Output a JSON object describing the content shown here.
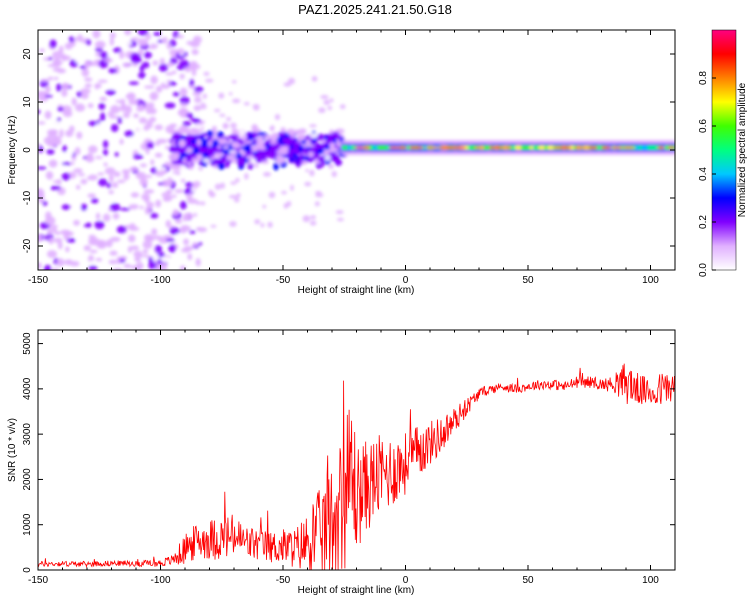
{
  "title": "PAZ1.2025.241.21.50.G18",
  "chart_data": [
    {
      "type": "heatmap",
      "name": "spectrogram",
      "xlabel": "Height of straight line (km)",
      "ylabel": "Frequency (Hz)",
      "xlim": [
        -150,
        110
      ],
      "ylim": [
        -25,
        25
      ],
      "xticks": [
        -150,
        -100,
        -50,
        0,
        50,
        100
      ],
      "yticks": [
        -20,
        -10,
        0,
        10,
        20
      ],
      "colorbar": {
        "label": "Normalized spectral amplitude",
        "range": [
          0,
          1
        ],
        "ticks": [
          0.0,
          0.2,
          0.4,
          0.6,
          0.8
        ],
        "tick_labels": [
          "0.0",
          "0.2",
          "0.4",
          "0.6",
          "0.8"
        ],
        "colormap": [
          "#ffffff",
          "#e0b0ff",
          "#8000ff",
          "#0000ff",
          "#00c8ff",
          "#00ff80",
          "#40ff00",
          "#ffff00",
          "#ff8000",
          "#ff0000",
          "#ff0080"
        ]
      },
      "regions": [
        {
          "x_range": [
            -150,
            -95
          ],
          "freq_spread": 25,
          "amplitude": 0.15,
          "description_level": "scattered"
        },
        {
          "x_range": [
            -95,
            -25
          ],
          "freq_spread": 6,
          "amplitude": 0.3
        },
        {
          "x_range": [
            -25,
            110
          ],
          "freq_center": 0.5,
          "freq_spread": 2,
          "amplitude": 0.8
        }
      ]
    },
    {
      "type": "line",
      "name": "snr",
      "xlabel": "Height of straight line (km)",
      "ylabel": "SNR (10 * v/v)",
      "xlim": [
        -150,
        110
      ],
      "ylim": [
        0,
        5300
      ],
      "xticks": [
        -150,
        -100,
        -50,
        0,
        50,
        100
      ],
      "yticks": [
        0,
        1000,
        2000,
        3000,
        4000,
        5000
      ],
      "color": "#ff0000",
      "series": [
        {
          "name": "SNR",
          "x": [
            -150,
            -140,
            -130,
            -120,
            -110,
            -100,
            -95,
            -90,
            -85,
            -80,
            -75,
            -70,
            -65,
            -60,
            -55,
            -50,
            -45,
            -40,
            -35,
            -30,
            -25,
            -22,
            -20,
            -15,
            -10,
            -5,
            0,
            5,
            10,
            15,
            20,
            25,
            30,
            35,
            40,
            45,
            50,
            55,
            60,
            65,
            70,
            75,
            80,
            85,
            90,
            95,
            100,
            105,
            110
          ],
          "values": [
            130,
            140,
            130,
            150,
            140,
            150,
            220,
            450,
            650,
            680,
            700,
            750,
            600,
            550,
            500,
            520,
            480,
            600,
            800,
            1100,
            1500,
            2200,
            1600,
            1900,
            2100,
            2200,
            2350,
            2600,
            2800,
            3000,
            3300,
            3600,
            3900,
            4000,
            4050,
            4000,
            4050,
            4100,
            4100,
            4050,
            4150,
            4150,
            4100,
            4100,
            4150,
            4000,
            3900,
            4000,
            4050
          ],
          "noise": [
            60,
            60,
            60,
            60,
            60,
            80,
            120,
            350,
            400,
            450,
            500,
            500,
            400,
            380,
            350,
            400,
            450,
            700,
            1000,
            1300,
            1500,
            2000,
            1200,
            1000,
            900,
            800,
            700,
            600,
            500,
            400,
            300,
            200,
            120,
            100,
            100,
            100,
            100,
            110,
            110,
            120,
            130,
            130,
            130,
            180,
            500,
            350,
            300,
            400,
            300
          ]
        }
      ]
    }
  ]
}
